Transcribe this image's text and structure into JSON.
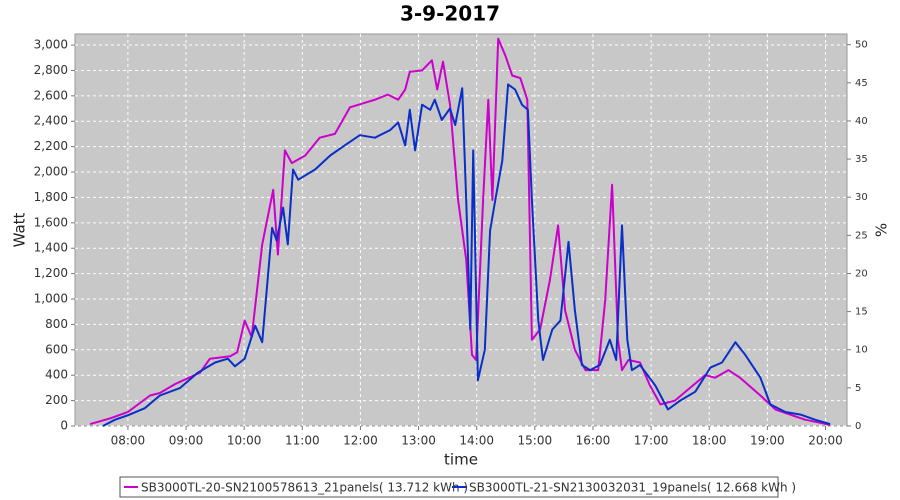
{
  "chart_data": {
    "type": "line",
    "title": "3-9-2017",
    "x_label": "time",
    "y_label": "Watt",
    "y2_label": "%",
    "xlim": [
      7.09,
      20.37
    ],
    "xticks": [
      {
        "value": 8,
        "label": "08:00"
      },
      {
        "value": 9,
        "label": "09:00"
      },
      {
        "value": 10,
        "label": "10:00"
      },
      {
        "value": 11,
        "label": "11:00"
      },
      {
        "value": 12,
        "label": "12:00"
      },
      {
        "value": 13,
        "label": "13:00"
      },
      {
        "value": 14,
        "label": "14:00"
      },
      {
        "value": 15,
        "label": "15:00"
      },
      {
        "value": 16,
        "label": "16:00"
      },
      {
        "value": 17,
        "label": "17:00"
      },
      {
        "value": 18,
        "label": "18:00"
      },
      {
        "value": 19,
        "label": "19:00"
      },
      {
        "value": 20,
        "label": "20:00"
      }
    ],
    "ylim": [
      0,
      3087
    ],
    "yticks": [
      0,
      200,
      400,
      600,
      800,
      {
        "value": 1000,
        "label": "1,000"
      },
      {
        "value": 1200,
        "label": "1,200"
      },
      {
        "value": 1400,
        "label": "1,400"
      },
      {
        "value": 1600,
        "label": "1,600"
      },
      {
        "value": 1800,
        "label": "1,800"
      },
      {
        "value": 2000,
        "label": "2,000"
      },
      {
        "value": 2200,
        "label": "2,200"
      },
      {
        "value": 2400,
        "label": "2,400"
      },
      {
        "value": 2600,
        "label": "2,600"
      },
      {
        "value": 2800,
        "label": "2,800"
      },
      {
        "value": 3000,
        "label": "3,000"
      }
    ],
    "y2lim": [
      0,
      51.4
    ],
    "y2ticks": [
      0,
      5,
      10,
      15,
      20,
      25,
      30,
      35,
      40,
      45,
      50
    ],
    "grid": true,
    "legend": "bottom",
    "series": [
      {
        "name": "SB3000TL-20-SN2100578613_21panels( 13.712 kWh )",
        "color": "#cc00cc",
        "x": [
          7.35,
          7.69,
          8.0,
          8.38,
          8.55,
          8.81,
          9.24,
          9.41,
          9.76,
          9.88,
          10.01,
          10.13,
          10.31,
          10.5,
          10.58,
          10.7,
          10.82,
          11.05,
          11.3,
          11.56,
          11.82,
          12.25,
          12.47,
          12.65,
          12.77,
          12.85,
          13.06,
          13.23,
          13.32,
          13.42,
          13.54,
          13.68,
          13.82,
          13.92,
          13.99,
          14.11,
          14.2,
          14.27,
          14.37,
          14.49,
          14.61,
          14.75,
          14.87,
          14.95,
          15.09,
          15.26,
          15.4,
          15.52,
          15.69,
          15.87,
          16.09,
          16.21,
          16.33,
          16.43,
          16.5,
          16.61,
          16.81,
          16.98,
          17.16,
          17.41,
          17.67,
          17.93,
          18.1,
          18.33,
          18.53,
          18.88,
          19.14,
          19.39,
          19.65,
          19.91,
          20.08
        ],
        "values": [
          15,
          60,
          110,
          240,
          260,
          330,
          420,
          530,
          550,
          580,
          830,
          700,
          1430,
          1860,
          1350,
          2170,
          2070,
          2130,
          2270,
          2300,
          2510,
          2570,
          2610,
          2570,
          2650,
          2790,
          2800,
          2880,
          2650,
          2870,
          2530,
          1780,
          1310,
          560,
          520,
          1780,
          2570,
          1780,
          3050,
          2920,
          2760,
          2740,
          2570,
          680,
          760,
          1150,
          1580,
          910,
          600,
          440,
          440,
          990,
          1900,
          680,
          440,
          520,
          500,
          320,
          170,
          200,
          300,
          400,
          380,
          440,
          380,
          240,
          130,
          90,
          50,
          25,
          8
        ]
      },
      {
        "name": "SB3000TL-21-SN2130032031_19panels( 12.668 kWh )",
        "color": "#0a2fc8",
        "x": [
          7.57,
          7.78,
          8.03,
          8.29,
          8.55,
          8.9,
          9.2,
          9.5,
          9.72,
          9.84,
          10.01,
          10.19,
          10.31,
          10.48,
          10.56,
          10.67,
          10.75,
          10.84,
          10.93,
          11.22,
          11.48,
          11.73,
          11.99,
          12.25,
          12.51,
          12.65,
          12.77,
          12.85,
          12.94,
          13.06,
          13.2,
          13.28,
          13.4,
          13.54,
          13.63,
          13.75,
          13.82,
          13.89,
          13.94,
          14.02,
          14.14,
          14.23,
          14.32,
          14.44,
          14.54,
          14.66,
          14.78,
          14.88,
          14.95,
          15.06,
          15.14,
          15.3,
          15.44,
          15.58,
          15.69,
          15.81,
          15.95,
          16.12,
          16.29,
          16.4,
          16.5,
          16.59,
          16.67,
          16.81,
          17.07,
          17.29,
          17.5,
          17.76,
          18.02,
          18.22,
          18.45,
          18.62,
          18.88,
          19.05,
          19.31,
          19.57,
          19.82,
          20.08
        ],
        "values": [
          0,
          50,
          90,
          140,
          240,
          300,
          420,
          500,
          530,
          470,
          530,
          790,
          660,
          1560,
          1460,
          1720,
          1430,
          2020,
          1940,
          2020,
          2130,
          2210,
          2290,
          2270,
          2330,
          2390,
          2210,
          2490,
          2170,
          2530,
          2490,
          2570,
          2410,
          2500,
          2370,
          2660,
          1780,
          760,
          2170,
          360,
          600,
          1540,
          1780,
          2090,
          2690,
          2650,
          2530,
          2490,
          1780,
          830,
          520,
          760,
          830,
          1450,
          910,
          480,
          440,
          480,
          680,
          520,
          1580,
          680,
          440,
          480,
          320,
          130,
          200,
          270,
          460,
          500,
          660,
          560,
          380,
          170,
          110,
          90,
          50,
          15
        ]
      }
    ]
  }
}
